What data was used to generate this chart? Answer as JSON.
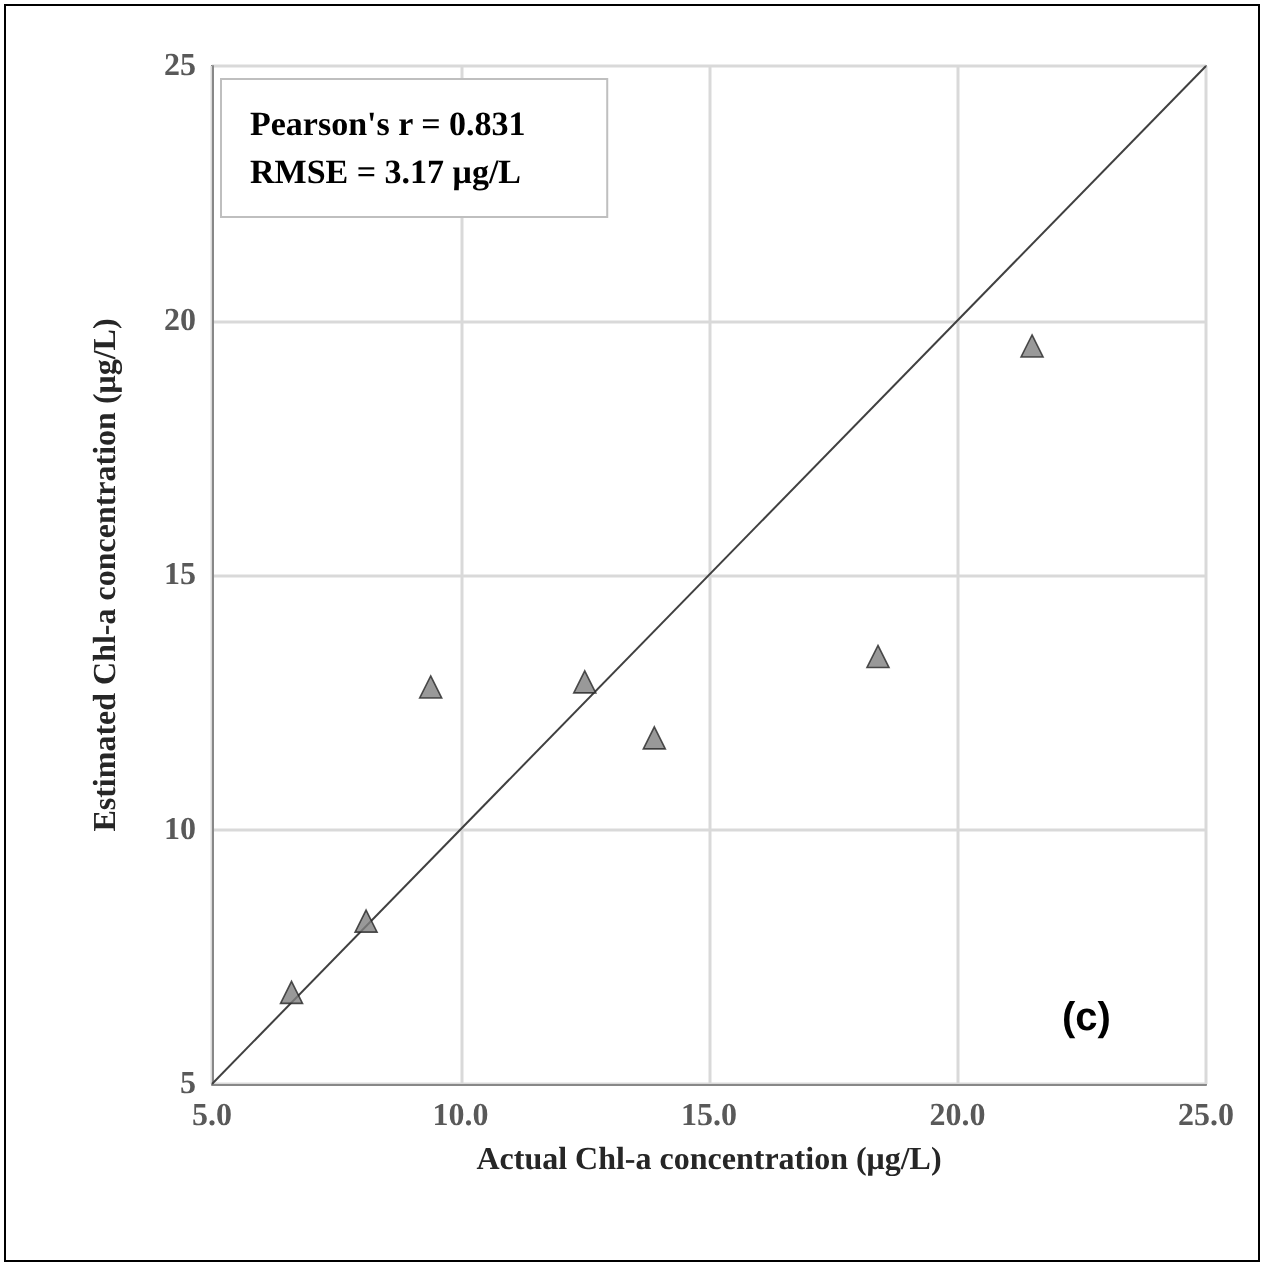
{
  "chart_data": {
    "type": "scatter",
    "xlabel": "Actual Chl-a concentration (μg/L)",
    "ylabel": "Estimated Chl-a concentration (μg/L)",
    "xlim": [
      5,
      25
    ],
    "xticks": [
      {
        "value": 5,
        "label": "5.0"
      },
      {
        "value": 10,
        "label": "10.0"
      },
      {
        "value": 15,
        "label": "15.0"
      },
      {
        "value": 20,
        "label": "20.0"
      },
      {
        "value": 25,
        "label": "25.0"
      }
    ],
    "ylim": [
      5,
      25
    ],
    "yticks": [
      5,
      10,
      15,
      20,
      25
    ],
    "grid": true,
    "marker": "triangle",
    "series": [
      {
        "type": "scatter",
        "color": "#7f7f7f",
        "x": [
          6.6,
          8.1,
          9.4,
          12.5,
          13.9,
          18.4,
          21.5
        ],
        "values": [
          6.8,
          8.2,
          12.8,
          12.9,
          11.8,
          13.4,
          19.5
        ]
      },
      {
        "type": "line",
        "color": "#404040",
        "marker": "none",
        "x": [
          5,
          25
        ],
        "values": [
          5,
          25
        ]
      }
    ],
    "annotations": [
      "Pearson's r = 0.831\nRMSE = 3.17 μg/L",
      "(c)"
    ]
  }
}
